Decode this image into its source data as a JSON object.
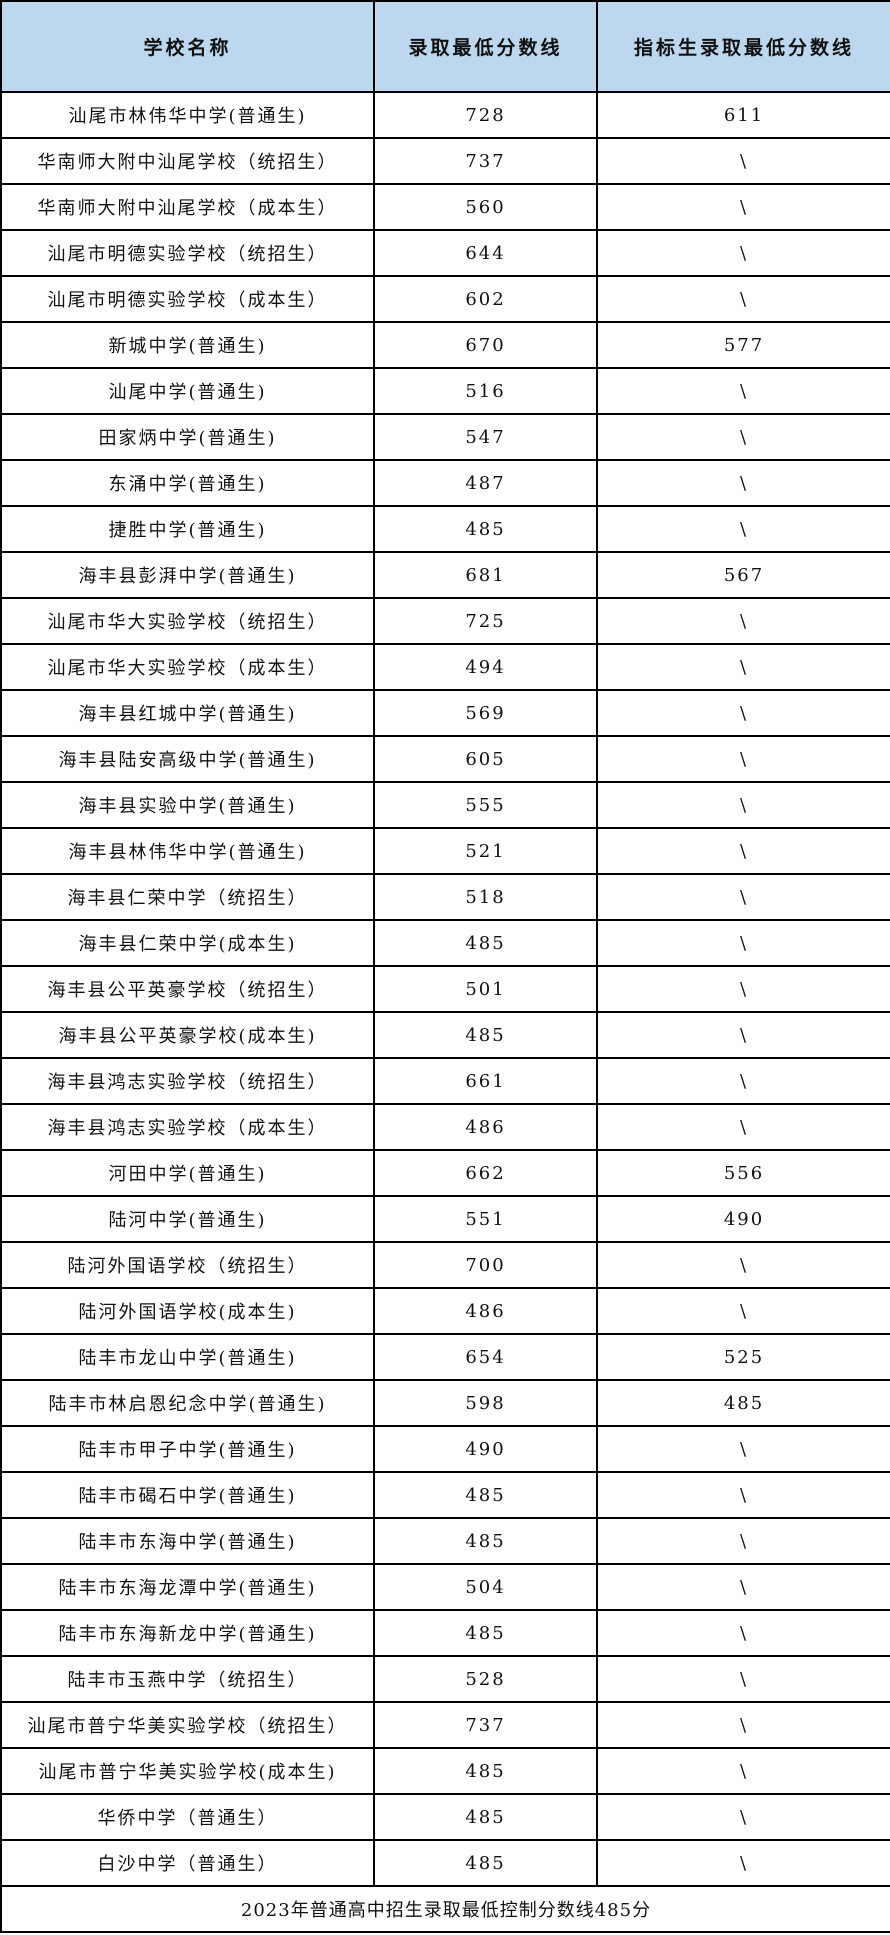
{
  "table": {
    "headers": [
      "学校名称",
      "录取最低分数线",
      "指标生录取最低分数线"
    ],
    "rows": [
      [
        "汕尾市林伟华中学(普通生)",
        "728",
        "611"
      ],
      [
        "华南师大附中汕尾学校（统招生）",
        "737",
        "\\"
      ],
      [
        "华南师大附中汕尾学校（成本生）",
        "560",
        "\\"
      ],
      [
        "汕尾市明德实验学校（统招生）",
        "644",
        "\\"
      ],
      [
        "汕尾市明德实验学校（成本生）",
        "602",
        "\\"
      ],
      [
        "新城中学(普通生)",
        "670",
        "577"
      ],
      [
        "汕尾中学(普通生)",
        "516",
        "\\"
      ],
      [
        "田家炳中学(普通生)",
        "547",
        "\\"
      ],
      [
        "东涌中学(普通生)",
        "487",
        "\\"
      ],
      [
        "捷胜中学(普通生)",
        "485",
        "\\"
      ],
      [
        "海丰县彭湃中学(普通生)",
        "681",
        "567"
      ],
      [
        "汕尾市华大实验学校（统招生）",
        "725",
        "\\"
      ],
      [
        "汕尾市华大实验学校（成本生）",
        "494",
        "\\"
      ],
      [
        "海丰县红城中学(普通生)",
        "569",
        "\\"
      ],
      [
        "海丰县陆安高级中学(普通生)",
        "605",
        "\\"
      ],
      [
        "海丰县实验中学(普通生)",
        "555",
        "\\"
      ],
      [
        "海丰县林伟华中学(普通生)",
        "521",
        "\\"
      ],
      [
        "海丰县仁荣中学（统招生）",
        "518",
        "\\"
      ],
      [
        "海丰县仁荣中学(成本生)",
        "485",
        "\\"
      ],
      [
        "海丰县公平英豪学校（统招生）",
        "501",
        "\\"
      ],
      [
        "海丰县公平英豪学校(成本生)",
        "485",
        "\\"
      ],
      [
        "海丰县鸿志实验学校（统招生）",
        "661",
        "\\"
      ],
      [
        "海丰县鸿志实验学校（成本生）",
        "486",
        "\\"
      ],
      [
        "河田中学(普通生)",
        "662",
        "556"
      ],
      [
        "陆河中学(普通生)",
        "551",
        "490"
      ],
      [
        "陆河外国语学校（统招生）",
        "700",
        "\\"
      ],
      [
        "陆河外国语学校(成本生)",
        "486",
        "\\"
      ],
      [
        "陆丰市龙山中学(普通生)",
        "654",
        "525"
      ],
      [
        "陆丰市林启恩纪念中学(普通生)",
        "598",
        "485"
      ],
      [
        "陆丰市甲子中学(普通生)",
        "490",
        "\\"
      ],
      [
        "陆丰市碣石中学(普通生)",
        "485",
        "\\"
      ],
      [
        "陆丰市东海中学(普通生)",
        "485",
        "\\"
      ],
      [
        "陆丰市东海龙潭中学(普通生)",
        "504",
        "\\"
      ],
      [
        "陆丰市东海新龙中学(普通生)",
        "485",
        "\\"
      ],
      [
        "陆丰市玉燕中学（统招生）",
        "528",
        "\\"
      ],
      [
        "汕尾市普宁华美实验学校（统招生）",
        "737",
        "\\"
      ],
      [
        "汕尾市普宁华美实验学校(成本生)",
        "485",
        "\\"
      ],
      [
        "华侨中学（普通生）",
        "485",
        "\\"
      ],
      [
        "白沙中学（普通生）",
        "485",
        "\\"
      ]
    ],
    "footer": "2023年普通高中招生录取最低控制分数线485分"
  },
  "colors": {
    "header_bg": "#bdd7ee",
    "border": "#000000"
  }
}
